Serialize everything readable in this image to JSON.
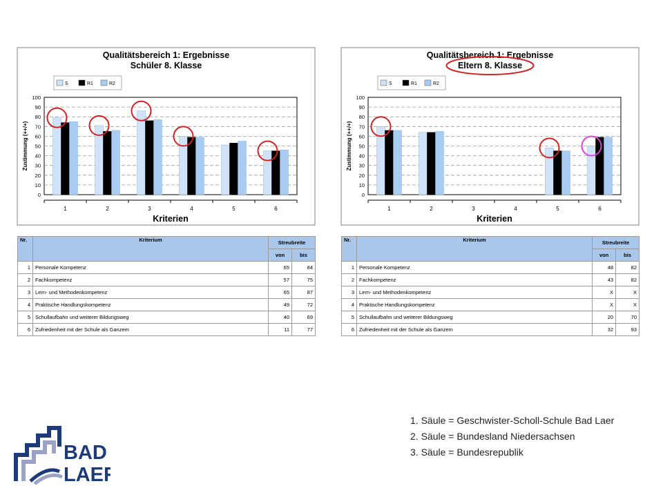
{
  "chart_data": [
    {
      "type": "bar",
      "title": "Qualitätsbereich 1: Ergebnisse",
      "subtitle": "Schüler 8. Klasse",
      "xlabel": "Kriterien",
      "ylabel": "Zustimmung (++/+)",
      "ylim": [
        0,
        100
      ],
      "yticks": [
        "0",
        "10",
        "20",
        "30",
        "40",
        "50",
        "60",
        "70",
        "80",
        "90",
        "100"
      ],
      "categories": [
        "1",
        "2",
        "3",
        "4",
        "5",
        "6"
      ],
      "legend_position": "top-left",
      "grid": true,
      "series": [
        {
          "name": "S",
          "color": "#cfe2f7",
          "values": [
            79,
            71,
            86,
            60,
            51,
            45
          ]
        },
        {
          "name": "R1",
          "color": "#000000",
          "values": [
            74,
            65,
            76,
            59,
            53,
            45
          ]
        },
        {
          "name": "R2",
          "color": "#a9cdf2",
          "values": [
            75,
            66,
            77,
            59,
            55,
            46
          ]
        }
      ]
    },
    {
      "type": "bar",
      "title": "Qualitätsbereich 1: Ergebnisse",
      "subtitle": "Eltern 8. Klasse",
      "xlabel": "Kriterien",
      "ylabel": "Zustimmung (++/+)",
      "ylim": [
        0,
        100
      ],
      "yticks": [
        "0",
        "10",
        "20",
        "30",
        "40",
        "50",
        "60",
        "70",
        "80",
        "90",
        "100"
      ],
      "categories": [
        "1",
        "2",
        "3",
        "4",
        "5",
        "6"
      ],
      "legend_position": "top-left",
      "grid": true,
      "series": [
        {
          "name": "S",
          "color": "#cfe2f7",
          "values": [
            70,
            64,
            null,
            null,
            48,
            50
          ]
        },
        {
          "name": "R1",
          "color": "#000000",
          "values": [
            66,
            64,
            null,
            null,
            45,
            59
          ]
        },
        {
          "name": "R2",
          "color": "#a9cdf2",
          "values": [
            66,
            65,
            null,
            null,
            45,
            59
          ]
        }
      ]
    }
  ],
  "tables": [
    {
      "header": {
        "nr": "Nr.",
        "kriterium": "Kriterium",
        "streubreite": "Streubreite",
        "von": "von",
        "bis": "bis"
      },
      "rows": [
        {
          "nr": "1",
          "kriterium": "Personale Kompetenz",
          "von": "65",
          "bis": "84"
        },
        {
          "nr": "2",
          "kriterium": "Fachkompetenz",
          "von": "57",
          "bis": "75"
        },
        {
          "nr": "3",
          "kriterium": "Lern- und Methodenkompetenz",
          "von": "65",
          "bis": "87"
        },
        {
          "nr": "4",
          "kriterium": "Praktische Handlungskompetenz",
          "von": "49",
          "bis": "72"
        },
        {
          "nr": "5",
          "kriterium": "Schullaufbahn und weiterer Bildungsweg",
          "von": "40",
          "bis": "69"
        },
        {
          "nr": "6",
          "kriterium": "Zufriedenheit mit der Schule als Ganzem",
          "von": "11",
          "bis": "77"
        }
      ]
    },
    {
      "header": {
        "nr": "Nr.",
        "kriterium": "Kriterium",
        "streubreite": "Streubreite",
        "von": "von",
        "bis": "bis"
      },
      "rows": [
        {
          "nr": "1",
          "kriterium": "Personale Kompetenz",
          "von": "48",
          "bis": "82"
        },
        {
          "nr": "2",
          "kriterium": "Fachkompetenz",
          "von": "43",
          "bis": "82"
        },
        {
          "nr": "3",
          "kriterium": "Lern- und Methodenkompetenz",
          "von": "X",
          "bis": "X"
        },
        {
          "nr": "4",
          "kriterium": "Praktische Handlungskompetenz",
          "von": "X",
          "bis": "X"
        },
        {
          "nr": "5",
          "kriterium": "Schullaufbahn und weiterer Bildungsweg",
          "von": "20",
          "bis": "70"
        },
        {
          "nr": "6",
          "kriterium": "Zufriedenheit mit der Schule als Ganzem",
          "von": "32",
          "bis": "93"
        }
      ]
    }
  ],
  "annotations": {
    "highlight_color": "#d42020",
    "alt_highlight_color": "#e040e0",
    "left_circled_categories": [
      "1",
      "2",
      "3",
      "4",
      "6"
    ],
    "right_circled_categories": [
      "1",
      "5"
    ],
    "right_alt_circled_categories": [
      "6"
    ],
    "right_subtitle_circled": true
  },
  "legend_notes": [
    "1. Säule = Geschwister-Scholl-Schule Bad Laer",
    "2. Säule = Bundesland Niedersachsen",
    "3. Säule = Bundesrepublik"
  ],
  "logo": {
    "line1": "BAD",
    "line2": "LAER",
    "color_main": "#1d3a7a",
    "color_accent": "#9aa3c6"
  }
}
